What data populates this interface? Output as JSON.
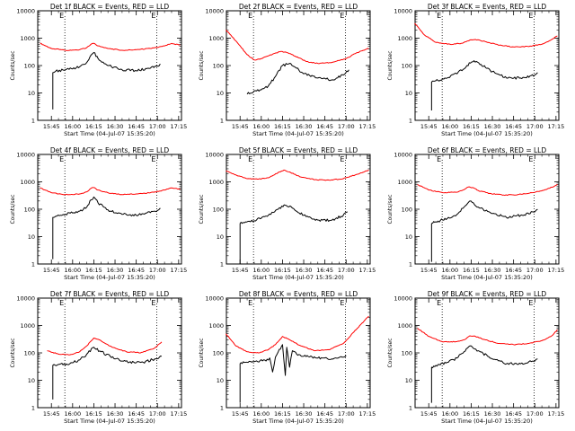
{
  "page": {
    "background": "#ffffff"
  },
  "colors": {
    "events": "#000000",
    "lld": "#ff0000",
    "axis": "#000000"
  },
  "common": {
    "ylabel": "Counts/sec",
    "xlabel": "Start Time (04-Jul-07 15:35:20)",
    "xticks": [
      "15:45",
      "16:00",
      "16:15",
      "16:30",
      "16:45",
      "17:00",
      "17:15"
    ],
    "yticks": [
      "1",
      "10",
      "100",
      "1000",
      "10000"
    ],
    "mark_left": "E",
    "mark_right": "E"
  },
  "chart_data": [
    {
      "type": "line",
      "title": "Det 1f BLACK = Events, RED = LLD",
      "xlabel": "Start Time (04-Jul-07 15:35:20)",
      "ylabel": "Counts/sec",
      "scale": "log",
      "ylim": [
        1,
        10000
      ],
      "xlim": [
        "15:35:20",
        "17:17:00"
      ],
      "dotted_lines": [
        "15:54:30",
        "16:59:30"
      ],
      "series": [
        {
          "name": "LLD",
          "x": [
            "15:37",
            "15:45",
            "15:55",
            "16:05",
            "16:10",
            "16:13",
            "16:15",
            "16:18",
            "16:25",
            "16:35",
            "16:45",
            "16:55",
            "17:05",
            "17:10",
            "17:16"
          ],
          "values": [
            650,
            420,
            360,
            380,
            450,
            600,
            650,
            520,
            420,
            360,
            380,
            420,
            520,
            640,
            560
          ]
        },
        {
          "name": "Events",
          "x": [
            "15:46",
            "15:46",
            "15:48",
            "15:55",
            "16:05",
            "16:10",
            "16:13",
            "16:15",
            "16:18",
            "16:25",
            "16:35",
            "16:45",
            "16:55",
            "17:00",
            "17:02"
          ],
          "values": [
            2.5,
            55,
            62,
            70,
            90,
            130,
            240,
            300,
            180,
            100,
            70,
            65,
            80,
            95,
            115
          ]
        }
      ]
    },
    {
      "type": "line",
      "title": "Det 2f BLACK = Events, RED = LLD",
      "xlabel": "Start Time (04-Jul-07 15:35:20)",
      "ylabel": "Counts/sec",
      "scale": "log",
      "ylim": [
        1,
        10000
      ],
      "xlim": [
        "15:35:20",
        "17:17:00"
      ],
      "dotted_lines": [
        "15:54:30",
        "16:59:30"
      ],
      "series": [
        {
          "name": "LLD",
          "x": [
            "15:35",
            "15:42",
            "15:50",
            "15:55",
            "16:00",
            "16:08",
            "16:14",
            "16:18",
            "16:24",
            "16:32",
            "16:40",
            "16:50",
            "17:00",
            "17:08",
            "17:16"
          ],
          "values": [
            2000,
            800,
            250,
            160,
            180,
            260,
            330,
            300,
            220,
            140,
            120,
            130,
            180,
            300,
            420
          ]
        },
        {
          "name": "Events",
          "x": [
            "15:50",
            "15:55",
            "16:00",
            "16:05",
            "16:10",
            "16:15",
            "16:20",
            "16:25",
            "16:30",
            "16:40",
            "16:50",
            "16:58",
            "17:02"
          ],
          "values": [
            9,
            12,
            13,
            18,
            40,
            100,
            120,
            80,
            50,
            35,
            30,
            45,
            70
          ]
        }
      ]
    },
    {
      "type": "line",
      "title": "Det 3f BLACK = Events, RED = LLD",
      "xlabel": "Start Time (04-Jul-07 15:35:20)",
      "ylabel": "Counts/sec",
      "scale": "log",
      "ylim": [
        1,
        10000
      ],
      "xlim": [
        "15:35:20",
        "17:17:00"
      ],
      "dotted_lines": [
        "15:54:30",
        "16:59:30"
      ],
      "series": [
        {
          "name": "LLD",
          "x": [
            "15:35",
            "15:42",
            "15:50",
            "16:00",
            "16:08",
            "16:14",
            "16:18",
            "16:25",
            "16:35",
            "16:45",
            "16:55",
            "17:05",
            "17:12",
            "17:16"
          ],
          "values": [
            3500,
            1300,
            700,
            600,
            650,
            850,
            900,
            750,
            550,
            480,
            500,
            600,
            900,
            1200
          ]
        },
        {
          "name": "Events",
          "x": [
            "15:47",
            "15:47",
            "15:50",
            "15:58",
            "16:05",
            "16:12",
            "16:17",
            "16:22",
            "16:30",
            "16:40",
            "16:50",
            "17:00",
            "17:02"
          ],
          "values": [
            2.3,
            25,
            28,
            35,
            50,
            100,
            150,
            110,
            60,
            35,
            35,
            45,
            55
          ]
        }
      ]
    },
    {
      "type": "line",
      "title": "Det 4f BLACK = Events, RED = LLD",
      "xlabel": "Start Time (04-Jul-07 15:35:20)",
      "ylabel": "Counts/sec",
      "scale": "log",
      "ylim": [
        1,
        10000
      ],
      "xlim": [
        "15:35:20",
        "17:17:00"
      ],
      "dotted_lines": [
        "15:54:30",
        "16:59:30"
      ],
      "series": [
        {
          "name": "LLD",
          "x": [
            "15:37",
            "15:45",
            "15:55",
            "16:05",
            "16:10",
            "16:13",
            "16:15",
            "16:18",
            "16:25",
            "16:35",
            "16:45",
            "16:55",
            "17:05",
            "17:10",
            "17:16"
          ],
          "values": [
            600,
            400,
            340,
            360,
            430,
            580,
            620,
            500,
            400,
            340,
            360,
            400,
            500,
            600,
            540
          ]
        },
        {
          "name": "Events",
          "x": [
            "15:46",
            "15:46",
            "15:48",
            "15:55",
            "16:05",
            "16:10",
            "16:13",
            "16:15",
            "16:18",
            "16:25",
            "16:35",
            "16:45",
            "16:55",
            "17:00",
            "17:02"
          ],
          "values": [
            1.5,
            50,
            55,
            65,
            85,
            120,
            220,
            280,
            170,
            95,
            65,
            60,
            75,
            90,
            110
          ]
        }
      ]
    },
    {
      "type": "line",
      "title": "Det 5f BLACK = Events, RED = LLD",
      "xlabel": "Start Time (04-Jul-07 15:35:20)",
      "ylabel": "Counts/sec",
      "scale": "log",
      "ylim": [
        1,
        10000
      ],
      "xlim": [
        "15:35:20",
        "17:17:00"
      ],
      "dotted_lines": [
        "15:54:30",
        "16:59:30"
      ],
      "series": [
        {
          "name": "LLD",
          "x": [
            "15:35",
            "15:42",
            "15:50",
            "15:58",
            "16:05",
            "16:12",
            "16:16",
            "16:20",
            "16:28",
            "16:38",
            "16:48",
            "16:58",
            "17:08",
            "17:16"
          ],
          "values": [
            2500,
            1800,
            1300,
            1250,
            1400,
            2200,
            2700,
            2300,
            1500,
            1200,
            1150,
            1300,
            1900,
            2700
          ]
        },
        {
          "name": "Events",
          "x": [
            "15:45",
            "15:45",
            "15:48",
            "15:55",
            "16:05",
            "16:12",
            "16:17",
            "16:22",
            "16:30",
            "16:40",
            "16:50",
            "16:58",
            "17:01"
          ],
          "values": [
            1,
            30,
            32,
            38,
            60,
            100,
            140,
            110,
            60,
            40,
            40,
            60,
            80
          ]
        }
      ]
    },
    {
      "type": "line",
      "title": "Det 6f BLACK = Events, RED = LLD",
      "xlabel": "Start Time (04-Jul-07 15:35:20)",
      "ylabel": "Counts/sec",
      "scale": "log",
      "ylim": [
        1,
        10000
      ],
      "xlim": [
        "15:35:20",
        "17:17:00"
      ],
      "dotted_lines": [
        "15:54:30",
        "16:59:30"
      ],
      "series": [
        {
          "name": "LLD",
          "x": [
            "15:37",
            "15:45",
            "15:55",
            "16:05",
            "16:10",
            "16:13",
            "16:16",
            "16:20",
            "16:28",
            "16:38",
            "16:48",
            "16:58",
            "17:08",
            "17:14",
            "17:16"
          ],
          "values": [
            800,
            500,
            400,
            420,
            520,
            650,
            620,
            480,
            380,
            330,
            340,
            400,
            520,
            700,
            800
          ]
        },
        {
          "name": "Events",
          "x": [
            "15:47",
            "15:47",
            "15:50",
            "15:58",
            "16:05",
            "16:10",
            "16:14",
            "16:20",
            "16:30",
            "16:40",
            "16:50",
            "17:00",
            "17:02"
          ],
          "values": [
            1.2,
            30,
            35,
            45,
            65,
            120,
            200,
            120,
            70,
            50,
            60,
            80,
            100
          ]
        }
      ]
    },
    {
      "type": "line",
      "title": "Det 7f BLACK = Events, RED = LLD",
      "xlabel": "Start Time (04-Jul-07 15:35:20)",
      "ylabel": "Counts/sec",
      "scale": "log",
      "ylim": [
        1,
        10000
      ],
      "xlim": [
        "15:35:20",
        "17:17:00"
      ],
      "dotted_lines": [
        "15:54:30",
        "16:59:30"
      ],
      "series": [
        {
          "name": "LLD",
          "x": [
            "15:42",
            "15:50",
            "15:58",
            "16:05",
            "16:10",
            "16:15",
            "16:20",
            "16:28",
            "16:38",
            "16:48",
            "16:58",
            "17:03"
          ],
          "values": [
            120,
            90,
            85,
            110,
            180,
            350,
            280,
            160,
            110,
            100,
            150,
            250
          ]
        },
        {
          "name": "Events",
          "x": [
            "15:46",
            "15:46",
            "15:50",
            "15:58",
            "16:05",
            "16:10",
            "16:15",
            "16:20",
            "16:30",
            "16:40",
            "16:50",
            "16:58",
            "17:03"
          ],
          "values": [
            2,
            35,
            38,
            40,
            55,
            90,
            160,
            110,
            60,
            45,
            45,
            60,
            75
          ]
        }
      ]
    },
    {
      "type": "line",
      "title": "Det 8f BLACK = Events, RED = LLD",
      "xlabel": "Start Time (04-Jul-07 15:35:20)",
      "ylabel": "Counts/sec",
      "scale": "log",
      "ylim": [
        1,
        10000
      ],
      "xlim": [
        "15:35:20",
        "17:17:00"
      ],
      "dotted_lines": [
        "15:54:30",
        "16:59:30"
      ],
      "series": [
        {
          "name": "LLD",
          "x": [
            "15:35",
            "15:42",
            "15:50",
            "15:58",
            "16:05",
            "16:10",
            "16:15",
            "16:20",
            "16:28",
            "16:38",
            "16:48",
            "16:58",
            "17:08",
            "17:16"
          ],
          "values": [
            500,
            180,
            110,
            100,
            130,
            200,
            400,
            300,
            180,
            120,
            130,
            220,
            800,
            2200
          ]
        },
        {
          "name": "Events",
          "x": [
            "15:45",
            "15:45",
            "15:48",
            "15:55",
            "16:05",
            "16:06",
            "16:08",
            "16:10",
            "16:12",
            "16:15",
            "16:17",
            "16:18",
            "16:20",
            "16:22",
            "16:25",
            "16:30",
            "16:40",
            "16:50",
            "16:58",
            "17:00"
          ],
          "values": [
            1.5,
            40,
            45,
            48,
            55,
            65,
            20,
            70,
            110,
            200,
            15,
            160,
            30,
            120,
            90,
            75,
            65,
            60,
            70,
            80
          ]
        }
      ]
    },
    {
      "type": "line",
      "title": "Det 9f BLACK = Events, RED = LLD",
      "xlabel": "Start Time (04-Jul-07 15:35:20)",
      "ylabel": "Counts/sec",
      "scale": "log",
      "ylim": [
        1,
        10000
      ],
      "xlim": [
        "15:35:20",
        "17:17:00"
      ],
      "dotted_lines": [
        "15:54:30",
        "16:59:30"
      ],
      "series": [
        {
          "name": "LLD",
          "x": [
            "15:37",
            "15:45",
            "15:55",
            "16:05",
            "16:10",
            "16:14",
            "16:18",
            "16:25",
            "16:35",
            "16:45",
            "16:55",
            "17:05",
            "17:12",
            "17:16"
          ],
          "values": [
            800,
            400,
            250,
            260,
            300,
            420,
            400,
            300,
            220,
            200,
            220,
            280,
            420,
            700
          ]
        },
        {
          "name": "Events",
          "x": [
            "15:47",
            "15:47",
            "15:50",
            "15:58",
            "16:05",
            "16:10",
            "16:14",
            "16:20",
            "16:30",
            "16:40",
            "16:50",
            "17:00",
            "17:02"
          ],
          "values": [
            1.5,
            30,
            35,
            45,
            65,
            110,
            180,
            120,
            60,
            40,
            40,
            50,
            60
          ]
        }
      ]
    }
  ]
}
